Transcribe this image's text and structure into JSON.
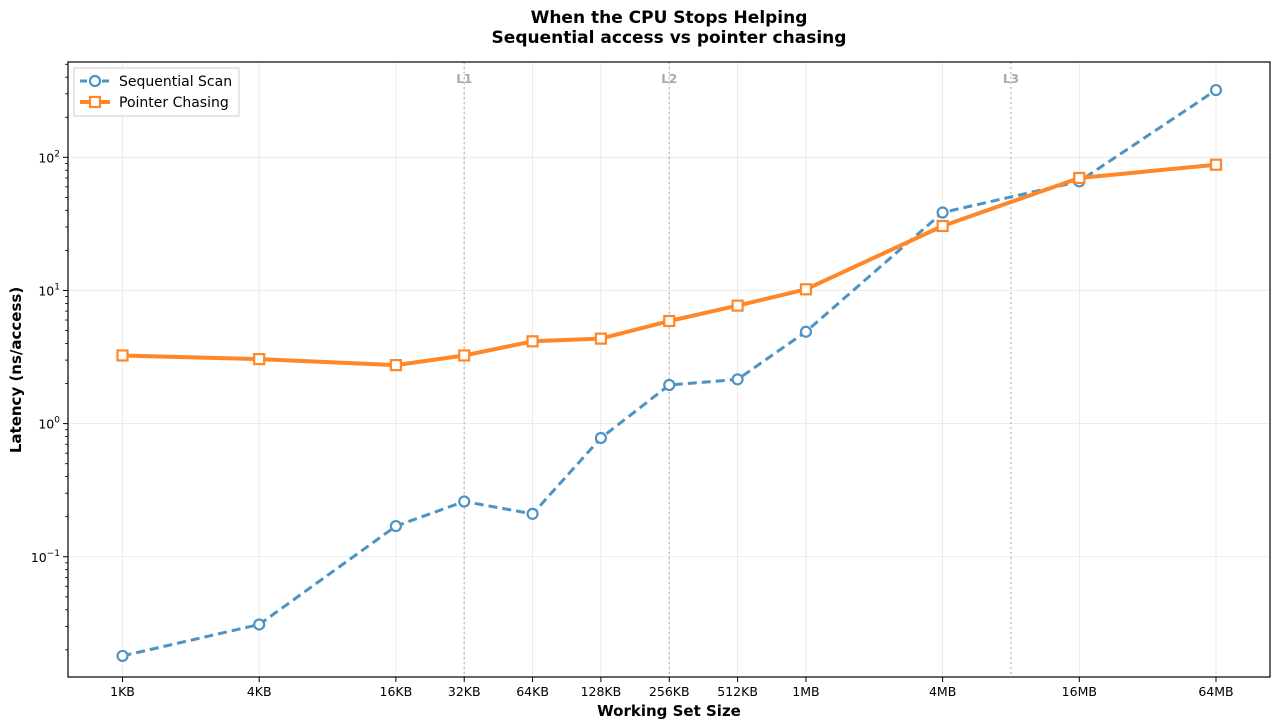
{
  "chart_data": {
    "type": "line",
    "title": "When the CPU Stops Helping",
    "subtitle": "Sequential access vs pointer chasing",
    "xlabel": "Working Set Size",
    "ylabel": "Latency (ns/access)",
    "x_scale": "log2",
    "y_scale": "log10",
    "x_ticks_kb": [
      1,
      4,
      16,
      32,
      64,
      128,
      256,
      512,
      1024,
      4096,
      16384,
      65536
    ],
    "x_tick_labels": [
      "1KB",
      "4KB",
      "16KB",
      "32KB",
      "64KB",
      "128KB",
      "256KB",
      "512KB",
      "1MB",
      "4MB",
      "16MB",
      "64MB"
    ],
    "y_tick_labels": [
      {
        "value": 0.1,
        "base": "10",
        "exp": "−1"
      },
      {
        "value": 1,
        "base": "10",
        "exp": "0"
      },
      {
        "value": 10,
        "base": "10",
        "exp": "1"
      },
      {
        "value": 100,
        "base": "10",
        "exp": "2"
      }
    ],
    "ylim": [
      0.0125,
      520
    ],
    "grid": true,
    "legend_position": "top-left",
    "cache_markers": [
      {
        "label": "L1",
        "x_kb": 32
      },
      {
        "label": "L2",
        "x_kb": 256
      },
      {
        "label": "L3",
        "x_kb": 8192
      }
    ],
    "series": [
      {
        "name": "Sequential Scan",
        "color": "#4c94c4",
        "line_style": "dashed",
        "marker": "circle",
        "x_kb": [
          1,
          4,
          16,
          32,
          64,
          128,
          256,
          512,
          1024,
          4096,
          16384,
          65536
        ],
        "values": [
          0.018,
          0.031,
          0.17,
          0.26,
          0.21,
          0.78,
          1.95,
          2.15,
          4.9,
          38.5,
          66,
          320
        ]
      },
      {
        "name": "Pointer Chasing",
        "color": "#ff8728",
        "line_style": "solid",
        "marker": "square",
        "x_kb": [
          1,
          4,
          16,
          32,
          64,
          128,
          256,
          512,
          1024,
          4096,
          16384,
          65536
        ],
        "values": [
          3.25,
          3.05,
          2.75,
          3.25,
          4.15,
          4.35,
          5.9,
          7.7,
          10.2,
          30.5,
          70,
          88
        ]
      }
    ]
  }
}
